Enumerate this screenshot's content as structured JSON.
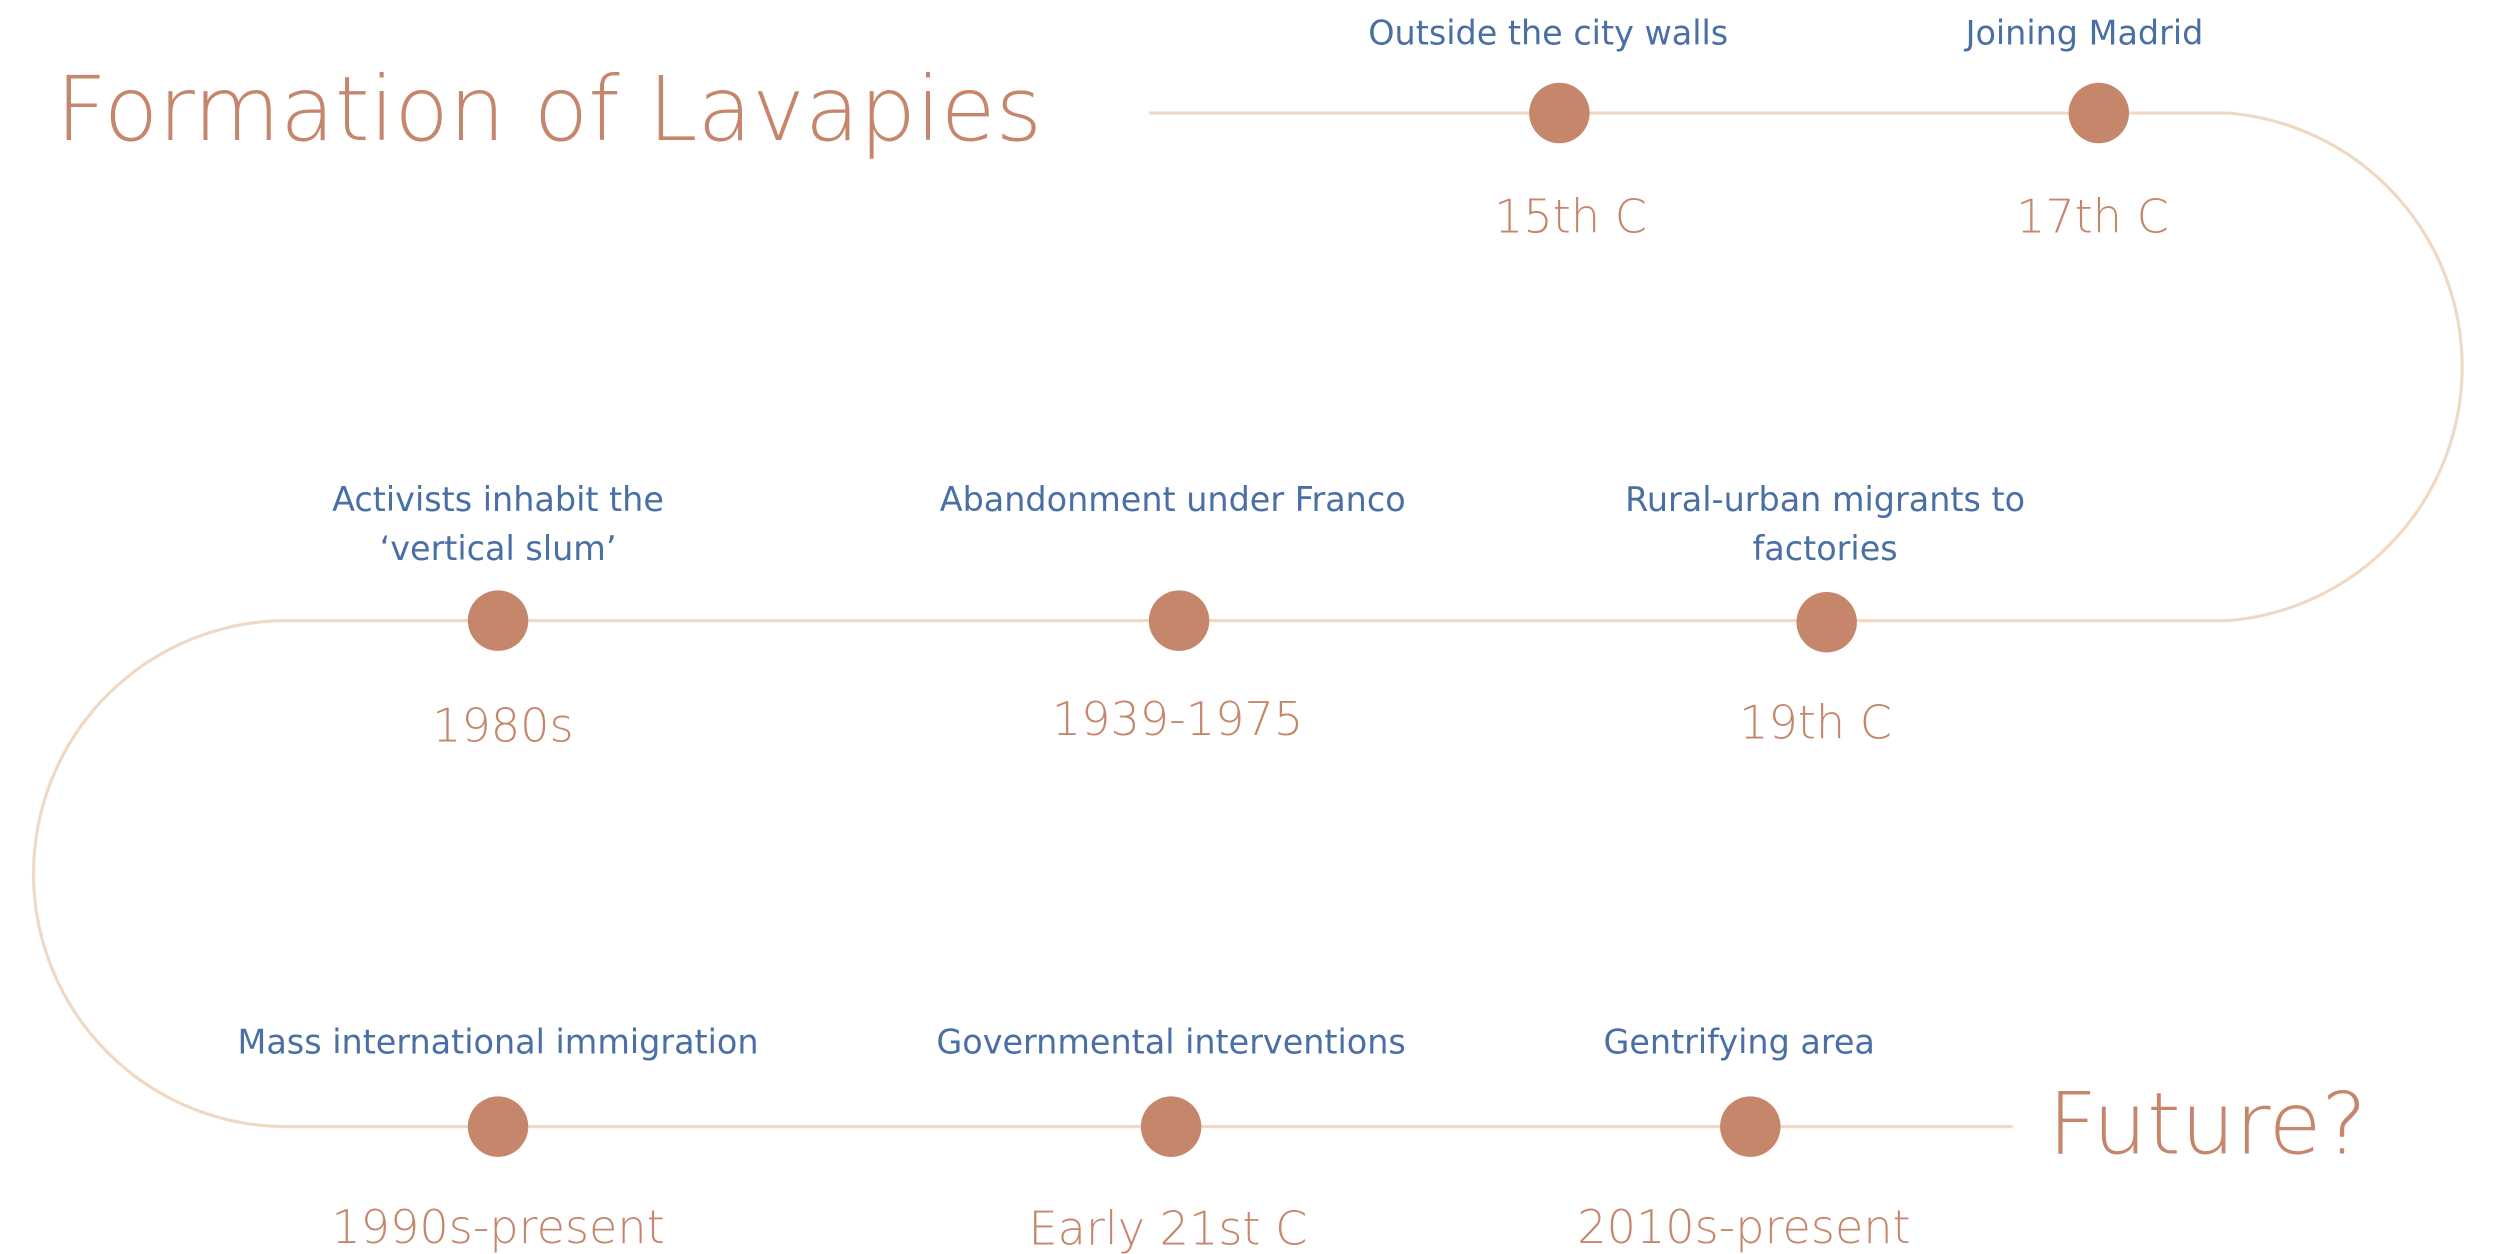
{
  "title": "Formation of Lavapies",
  "end_label": "Future?",
  "events": [
    {
      "label": [
        "Outside the city walls"
      ],
      "date": "15th C"
    },
    {
      "label": [
        "Joining Madrid"
      ],
      "date": "17th C"
    },
    {
      "label": [
        "Rural-urban migrants to",
        "factories"
      ],
      "date": "19th C"
    },
    {
      "label": [
        "Abandonment under Franco"
      ],
      "date": "1939-1975"
    },
    {
      "label": [
        "Activists inhabit the",
        "‘vertical slum’"
      ],
      "date": "1980s"
    },
    {
      "label": [
        "Mass international immigration"
      ],
      "date": "1990s-present"
    },
    {
      "label": [
        "Governmental interventions"
      ],
      "date": "Early 21st C"
    },
    {
      "label": [
        "Gentrifying area"
      ],
      "date": "2010s-present"
    }
  ]
}
